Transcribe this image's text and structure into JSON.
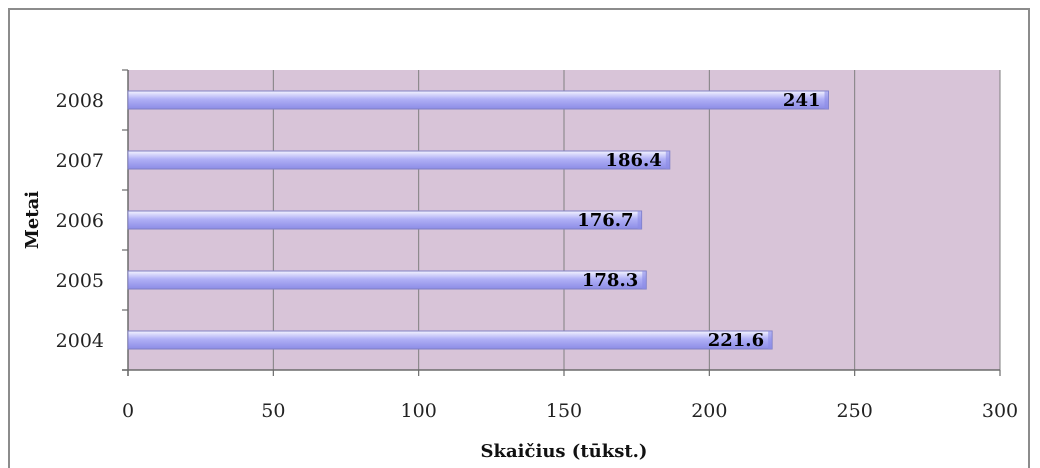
{
  "chart_data": {
    "type": "bar",
    "orientation": "horizontal",
    "title": "",
    "xlabel": "Skaičius (tūkst.)",
    "ylabel": "Metai",
    "categories": [
      "2004",
      "2005",
      "2006",
      "2007",
      "2008"
    ],
    "values": [
      221.6,
      178.3,
      176.7,
      186.4,
      241
    ],
    "value_labels": [
      "221.6",
      "178.3",
      "176.7",
      "186.4",
      "241"
    ],
    "xlim": [
      0,
      300
    ],
    "x_ticks": [
      0,
      50,
      100,
      150,
      200,
      250,
      300
    ],
    "x_tick_labels": [
      "0",
      "50",
      "100",
      "150",
      "200",
      "250",
      "300"
    ],
    "grid": true,
    "legend": "none",
    "colors": {
      "plot_background": "#d8c4d8",
      "bar_fill_top": "#f4f4ff",
      "bar_fill_mid": "#b0b0f6",
      "bar_fill_bottom": "#8c8ce6",
      "bar_edge": "#8080c4",
      "gridline": "#7f7f7f",
      "axis": "#6b6b6b"
    }
  }
}
